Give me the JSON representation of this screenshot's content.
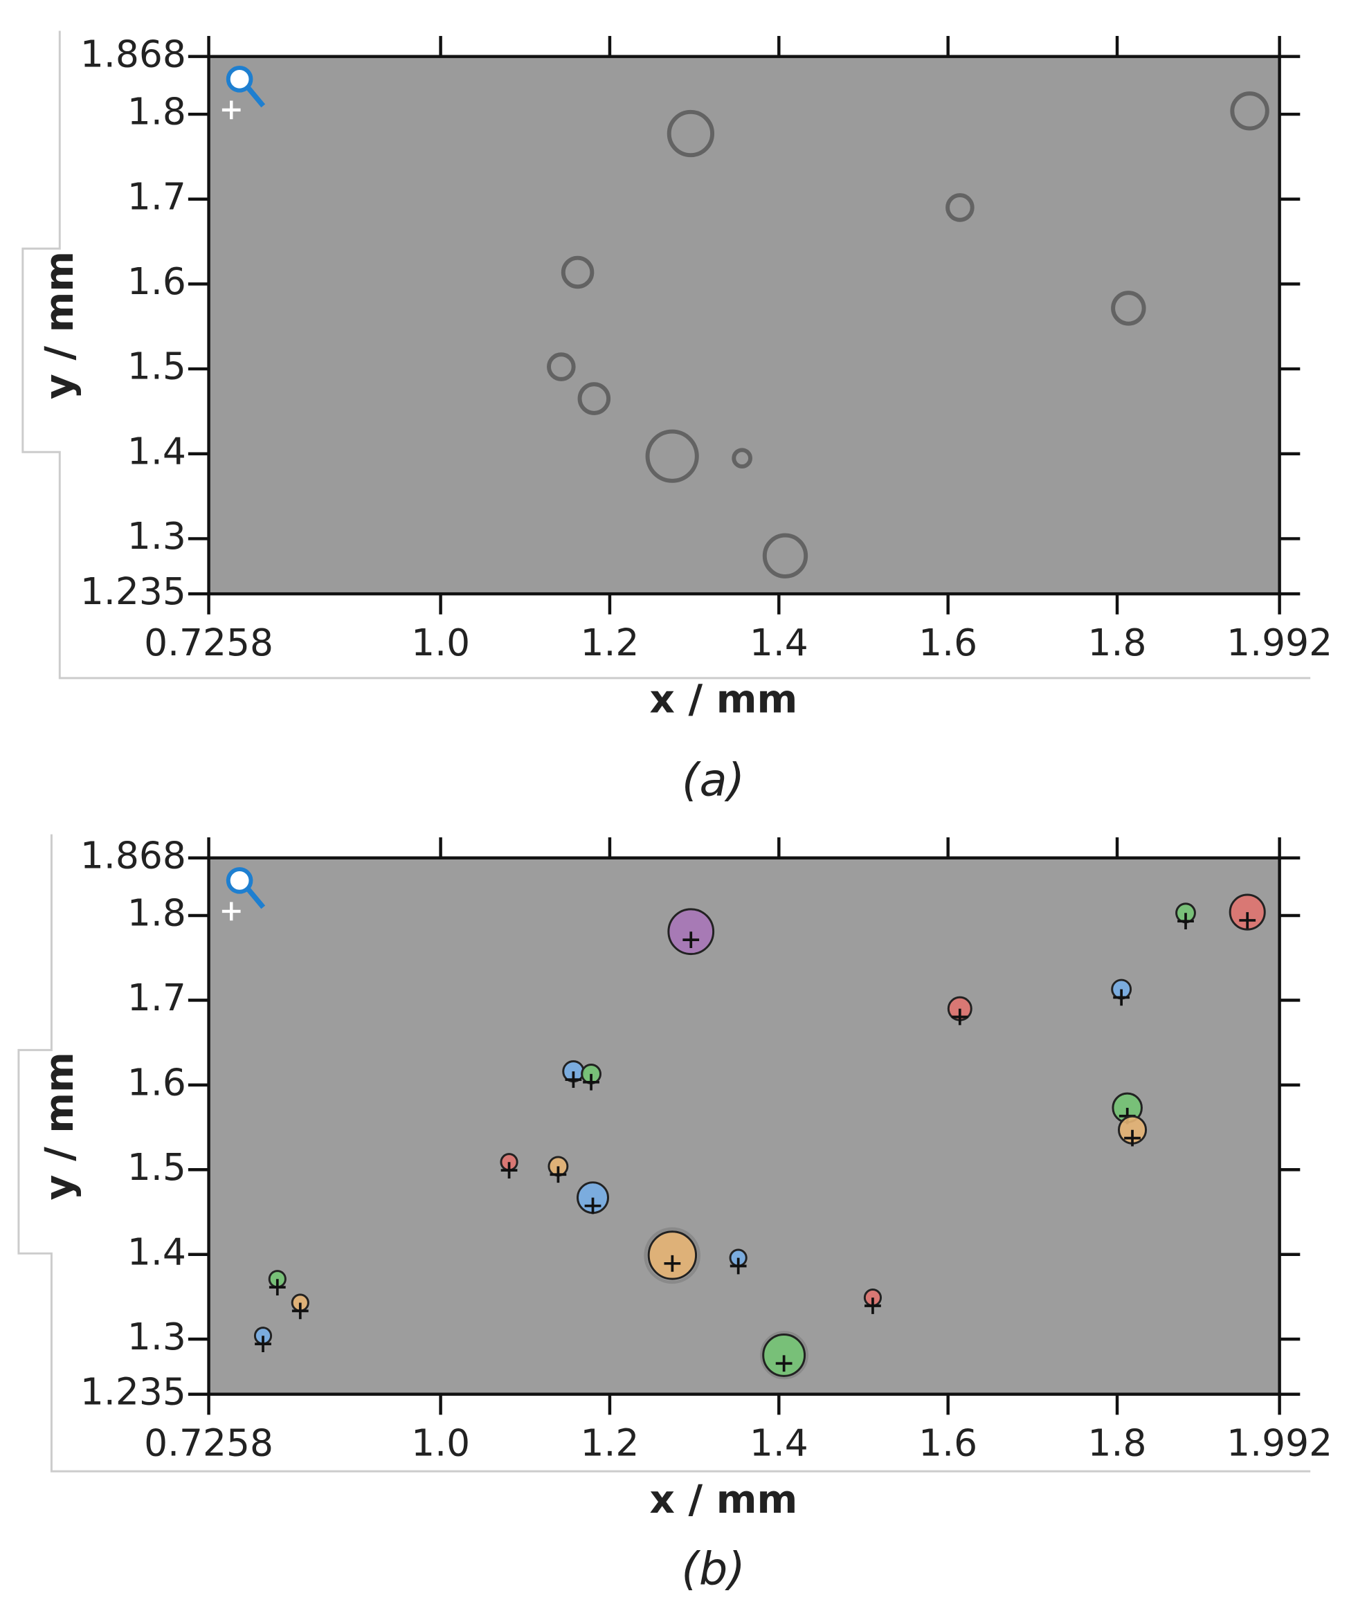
{
  "chart_data": [
    {
      "type": "image",
      "caption": "(a)",
      "xlabel": "x / mm",
      "ylabel": "y / mm",
      "xlim": [
        0.7258,
        1.992
      ],
      "ylim": [
        1.235,
        1.868
      ],
      "xticks": [
        0.7258,
        {
          "value": 1.0,
          "label": "1.0"
        },
        1.2,
        1.4,
        1.6,
        1.8,
        1.992
      ],
      "yticks": [
        1.235,
        1.3,
        1.4,
        1.5,
        1.6,
        1.7,
        1.8,
        1.868
      ]
    },
    {
      "type": "scatter",
      "caption": "(b)",
      "xlabel": "x / mm",
      "ylabel": "y / mm",
      "xlim": [
        0.7258,
        1.992
      ],
      "ylim": [
        1.235,
        1.868
      ],
      "xticks": [
        0.7258,
        {
          "value": 1.0,
          "label": "1.0"
        },
        1.2,
        1.4,
        1.6,
        1.8,
        1.992
      ],
      "yticks": [
        1.235,
        1.3,
        1.4,
        1.5,
        1.6,
        1.7,
        1.8,
        1.868
      ],
      "x": [
        1.296,
        1.954,
        1.881,
        1.805,
        1.614,
        1.157,
        1.178,
        1.812,
        1.818,
        1.081,
        1.139,
        1.18,
        1.274,
        1.352,
        0.807,
        0.834,
        1.511,
        0.79,
        1.406
      ],
      "y": [
        1.781,
        1.804,
        1.803,
        1.713,
        1.69,
        1.616,
        1.613,
        1.573,
        1.547,
        1.509,
        1.504,
        1.467,
        1.399,
        1.396,
        1.371,
        1.343,
        1.349,
        1.304,
        1.281
      ],
      "sizes": [
        0.053,
        0.041,
        0.022,
        0.022,
        0.027,
        0.024,
        0.022,
        0.034,
        0.032,
        0.019,
        0.022,
        0.036,
        0.056,
        0.019,
        0.019,
        0.019,
        0.019,
        0.019,
        0.049
      ],
      "colors": [
        "#a877b8",
        "#e07470",
        "#74c474",
        "#78aee6",
        "#e07470",
        "#78aee6",
        "#74c474",
        "#74c474",
        "#e6b474",
        "#e07470",
        "#e6b474",
        "#78aee6",
        "#e6b474",
        "#78aee6",
        "#74c474",
        "#e6b474",
        "#e07470",
        "#78aee6",
        "#74c474"
      ]
    }
  ]
}
